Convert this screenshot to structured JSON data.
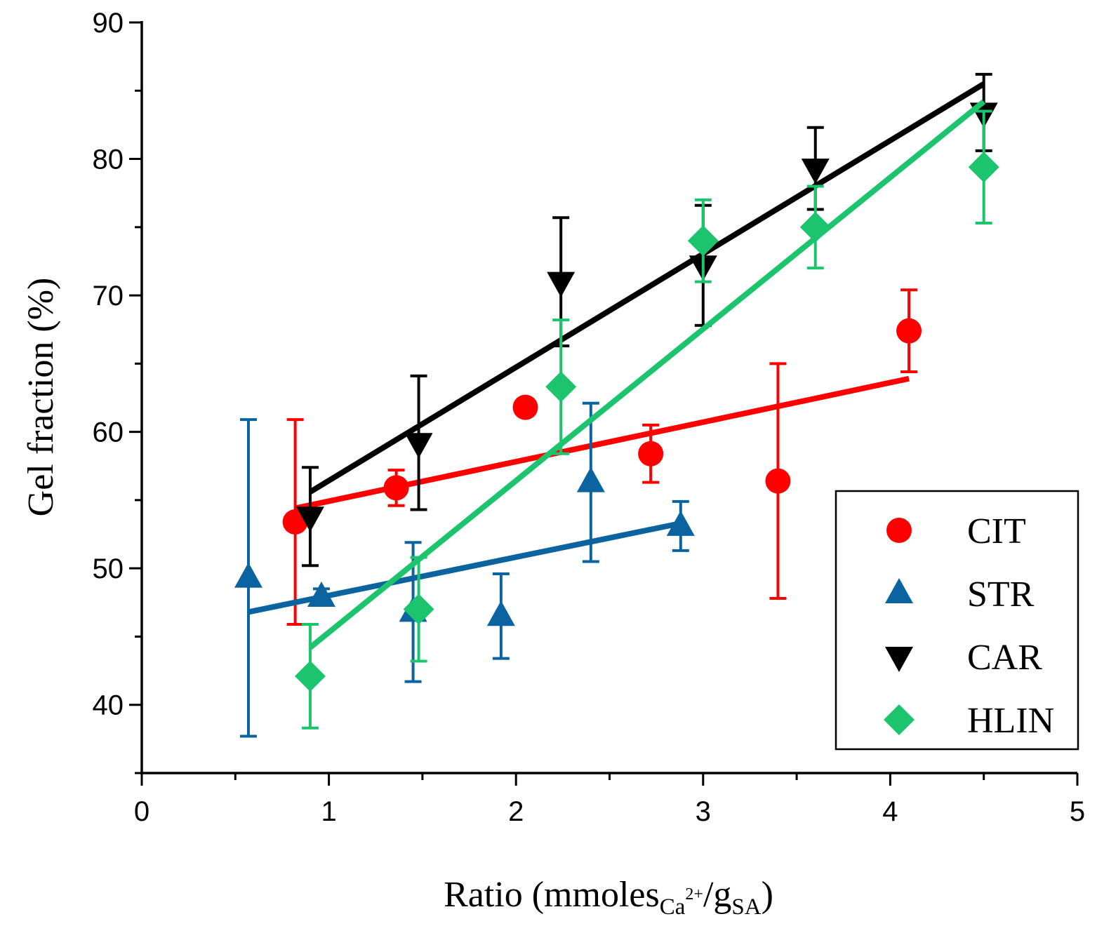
{
  "chart_data": {
    "type": "scatter",
    "title": "",
    "xlabel": {
      "main": "Ratio (mmoles",
      "sub1": "Ca",
      "sup1": "2+",
      "slash": "/g",
      "sub2": "SA",
      "close": ")"
    },
    "ylabel": "Gel fraction (%)",
    "xlim": [
      0,
      5
    ],
    "ylim": [
      35,
      90
    ],
    "xticks": [
      "0",
      "1",
      "2",
      "3",
      "4",
      "5"
    ],
    "yticks": [
      "40",
      "50",
      "60",
      "70",
      "80",
      "90"
    ],
    "legend_position": "bottom-right",
    "series": [
      {
        "name": "CIT",
        "color": "#ff0000",
        "marker": "circle",
        "points": [
          {
            "x": 0.82,
            "y": 53.4,
            "err": 7.5
          },
          {
            "x": 1.36,
            "y": 55.9,
            "err": 1.3
          },
          {
            "x": 2.05,
            "y": 61.8,
            "err": 0.6
          },
          {
            "x": 2.72,
            "y": 58.4,
            "err": 2.1
          },
          {
            "x": 3.4,
            "y": 56.4,
            "err": 8.6
          },
          {
            "x": 4.1,
            "y": 67.4,
            "err": 3.0
          }
        ],
        "fit": {
          "x": [
            0.82,
            4.1
          ],
          "y": [
            54.4,
            63.9
          ]
        }
      },
      {
        "name": "STR",
        "color": "#0b63a0",
        "marker": "triangle-up",
        "points": [
          {
            "x": 0.57,
            "y": 49.3,
            "err": 11.6
          },
          {
            "x": 0.96,
            "y": 47.9,
            "err": 0.6
          },
          {
            "x": 1.45,
            "y": 46.8,
            "err": 5.1
          },
          {
            "x": 1.92,
            "y": 46.5,
            "err": 3.1
          },
          {
            "x": 2.4,
            "y": 56.3,
            "err": 5.8
          },
          {
            "x": 2.88,
            "y": 53.1,
            "err": 1.8
          }
        ],
        "fit": {
          "x": [
            0.57,
            2.88
          ],
          "y": [
            46.8,
            53.3
          ]
        }
      },
      {
        "name": "CAR",
        "color": "#000000",
        "marker": "triangle-down",
        "points": [
          {
            "x": 0.9,
            "y": 53.8,
            "err": 3.6
          },
          {
            "x": 1.48,
            "y": 59.2,
            "err": 4.9
          },
          {
            "x": 2.24,
            "y": 71.0,
            "err": 4.7
          },
          {
            "x": 3.0,
            "y": 72.2,
            "err": 4.4
          },
          {
            "x": 3.6,
            "y": 79.3,
            "err": 3.0
          },
          {
            "x": 4.5,
            "y": 83.4,
            "err": 2.8
          }
        ],
        "fit": {
          "x": [
            0.9,
            4.5
          ],
          "y": [
            55.6,
            85.5
          ]
        }
      },
      {
        "name": "HLIN",
        "color": "#1dc46e",
        "marker": "diamond",
        "points": [
          {
            "x": 0.9,
            "y": 42.1,
            "err": 3.8
          },
          {
            "x": 1.48,
            "y": 47.0,
            "err": 3.8
          },
          {
            "x": 2.24,
            "y": 63.3,
            "err": 4.9
          },
          {
            "x": 3.0,
            "y": 74.0,
            "err": 3.0
          },
          {
            "x": 3.6,
            "y": 75.0,
            "err": 3.0
          },
          {
            "x": 4.5,
            "y": 79.4,
            "err": 4.1
          }
        ],
        "fit": {
          "x": [
            0.9,
            4.5
          ],
          "y": [
            44.2,
            84.2
          ]
        }
      }
    ]
  }
}
